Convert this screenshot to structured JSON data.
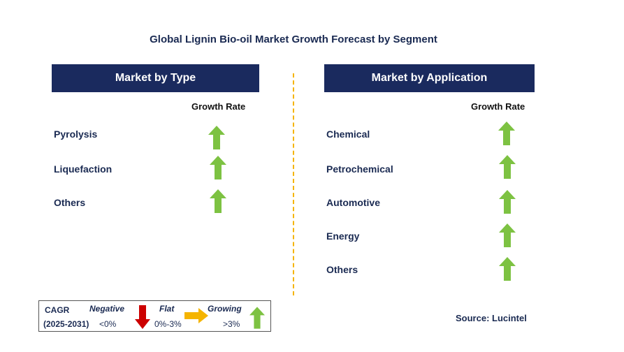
{
  "title": "Global Lignin Bio-oil Market Growth Forecast by Segment",
  "left_panel": {
    "header": "Market by Type",
    "growth_label": "Growth Rate",
    "items": [
      {
        "label": "Pyrolysis",
        "trend": "growing"
      },
      {
        "label": "Liquefaction",
        "trend": "growing"
      },
      {
        "label": "Others",
        "trend": "growing"
      }
    ]
  },
  "right_panel": {
    "header": "Market by Application",
    "growth_label": "Growth Rate",
    "items": [
      {
        "label": "Chemical",
        "trend": "growing"
      },
      {
        "label": "Petrochemical",
        "trend": "growing"
      },
      {
        "label": "Automotive",
        "trend": "growing"
      },
      {
        "label": "Energy",
        "trend": "growing"
      },
      {
        "label": "Others",
        "trend": "growing"
      }
    ]
  },
  "legend": {
    "cagr": "CAGR",
    "period": "(2025-2031)",
    "negative": {
      "label": "Negative",
      "range": "<0%"
    },
    "flat": {
      "label": "Flat",
      "range": "0%-3%"
    },
    "growing": {
      "label": "Growing",
      "range": ">3%"
    }
  },
  "source": "Source: Lucintel",
  "colors": {
    "header_bg": "#1a2a5e",
    "growing": "#7dc242",
    "negative": "#cc0000",
    "flat": "#f5b400",
    "divider": "#f5b400"
  }
}
